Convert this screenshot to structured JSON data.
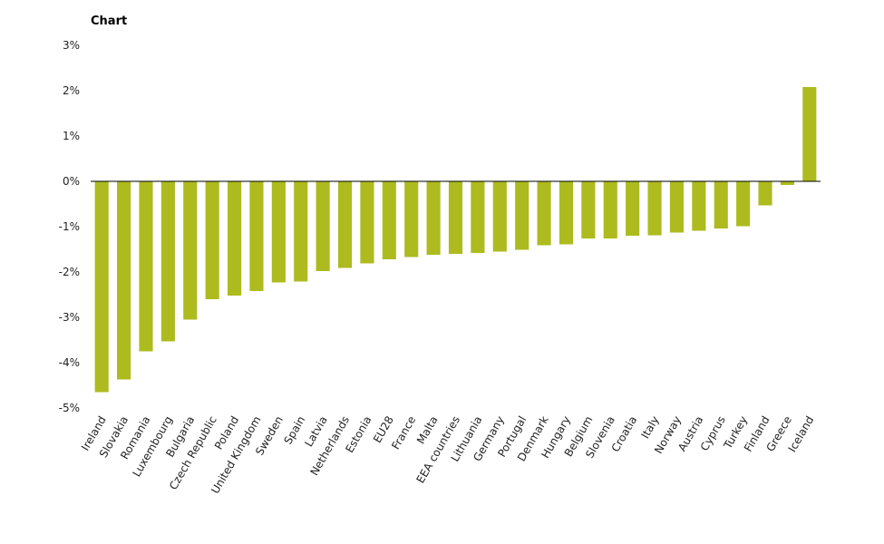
{
  "chart_data": {
    "type": "bar",
    "title": "Chart",
    "xlabel": "",
    "ylabel": "",
    "ylim": [
      -5,
      3
    ],
    "y_ticks": [
      "3%",
      "2%",
      "1%",
      "0%",
      "-1%",
      "-2%",
      "-3%",
      "-4%",
      "-5%"
    ],
    "y_tick_values": [
      3,
      2,
      1,
      0,
      -1,
      -2,
      -3,
      -4,
      -5
    ],
    "bar_color": "#adbb1f",
    "grid": false,
    "legend": "none",
    "categories": [
      "Ireland",
      "Slovakia",
      "Romania",
      "Luxembourg",
      "Bulgaria",
      "Czech Republic",
      "Poland",
      "United Kingdom",
      "Sweden",
      "Spain",
      "Latvia",
      "Netherlands",
      "Estonia",
      "EU28",
      "France",
      "Malta",
      "EEA countries",
      "Lithuania",
      "Germany",
      "Portugal",
      "Denmark",
      "Hungary",
      "Belgium",
      "Slovenia",
      "Croatia",
      "Italy",
      "Norway",
      "Austria",
      "Cyprus",
      "Turkey",
      "Finland",
      "Greece",
      "Iceland"
    ],
    "values": [
      -4.65,
      -4.37,
      -3.75,
      -3.53,
      -3.05,
      -2.6,
      -2.52,
      -2.42,
      -2.23,
      -2.21,
      -1.98,
      -1.91,
      -1.81,
      -1.72,
      -1.67,
      -1.62,
      -1.6,
      -1.58,
      -1.55,
      -1.51,
      -1.41,
      -1.39,
      -1.26,
      -1.26,
      -1.2,
      -1.19,
      -1.13,
      -1.09,
      -1.04,
      -0.99,
      -0.53,
      -0.08,
      2.08
    ]
  }
}
